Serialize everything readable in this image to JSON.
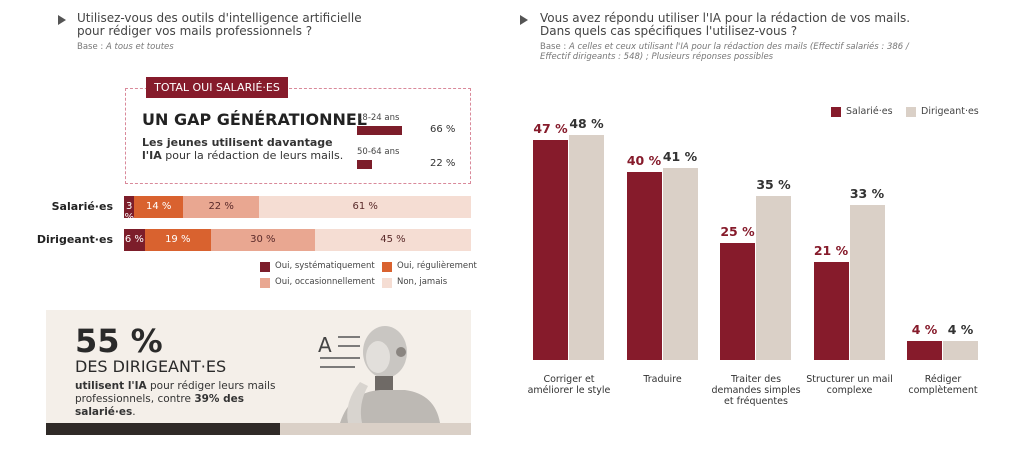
{
  "chart_data": [
    {
      "type": "stacked-bar",
      "title": "Utilisez-vous des outils d'intelligence artificielle pour rédiger vos mails professionnels ?",
      "base_label": "Base :",
      "base": "A tous et toutes",
      "categories": [
        "Salarié·es",
        "Dirigeant·es"
      ],
      "series": [
        {
          "name": "Oui, systématiquement",
          "color": "#7c1d2a",
          "text_color": "#ffffff",
          "values": [
            3,
            6
          ],
          "value_labels": [
            "3 %",
            "6 %"
          ]
        },
        {
          "name": "Oui, régulièrement",
          "color": "#d9622f",
          "text_color": "#ffffff",
          "values": [
            14,
            19
          ],
          "value_labels": [
            "14 %",
            "19 %"
          ]
        },
        {
          "name": "Oui, occasionnellement",
          "color": "#e9a791",
          "text_color": "#5a2a2a",
          "values": [
            22,
            30
          ],
          "value_labels": [
            "22 %",
            "30 %"
          ]
        },
        {
          "name": "Non, jamais",
          "color": "#f5ddd3",
          "text_color": "#5a2a2a",
          "values": [
            61,
            45
          ],
          "value_labels": [
            "61 %",
            "45 %"
          ]
        }
      ]
    },
    {
      "type": "mini-bar",
      "banner": "TOTAL OUI SALARIÉ·ES",
      "title": "UN GAP GÉNÉRATIONNEL",
      "description": [
        {
          "text": "Les jeunes utilisent davantage l'IA",
          "bold": true
        },
        {
          "text": " pour la rédaction de leurs mails.",
          "bold": false
        }
      ],
      "categories": [
        "18-24 ans",
        "50-64 ans"
      ],
      "values": [
        66,
        22
      ],
      "value_labels": [
        "66 %",
        "22 %"
      ],
      "color": "#7c1d2a"
    },
    {
      "type": "bar",
      "title": [
        "Vous avez répondu utiliser l'IA pour la rédaction de vos mails.",
        "Dans quels cas spécifiques l'utilisez-vous ?"
      ],
      "base_label": "Base :",
      "base": "A celles et ceux utilisant l'IA pour la rédaction des mails (Effectif salariés : 386 / Effectif dirigeants : 548) ; Plusieurs réponses possibles",
      "categories": [
        "Corriger et améliorer le style",
        "Traduire",
        "Traiter des demandes simples et fréquentes",
        "Structurer un mail complexe",
        "Rédiger complètement"
      ],
      "series": [
        {
          "name": "Salarié·es",
          "color": "#861b2b",
          "label_color": "#861b2b",
          "values": [
            47,
            40,
            25,
            21,
            4
          ],
          "value_labels": [
            "47 %",
            "40 %",
            "25 %",
            "21 %",
            "4 %"
          ]
        },
        {
          "name": "Dirigeant·es",
          "color": "#dad0c7",
          "label_color": "#333333",
          "values": [
            48,
            41,
            35,
            33,
            4
          ],
          "value_labels": [
            "48 %",
            "41 %",
            "35 %",
            "33 %",
            "4 %"
          ]
        }
      ]
    }
  ],
  "highlight": {
    "figure": "55 %",
    "headline": "DES DIRIGEANT·ES",
    "text": [
      {
        "text": "utilisent l'IA",
        "bold": true
      },
      {
        "text": " pour rédiger leurs mails professionnels, contre ",
        "bold": false
      },
      {
        "text": "39% des salarié·es",
        "bold": true
      },
      {
        "text": ".",
        "bold": false
      }
    ]
  }
}
